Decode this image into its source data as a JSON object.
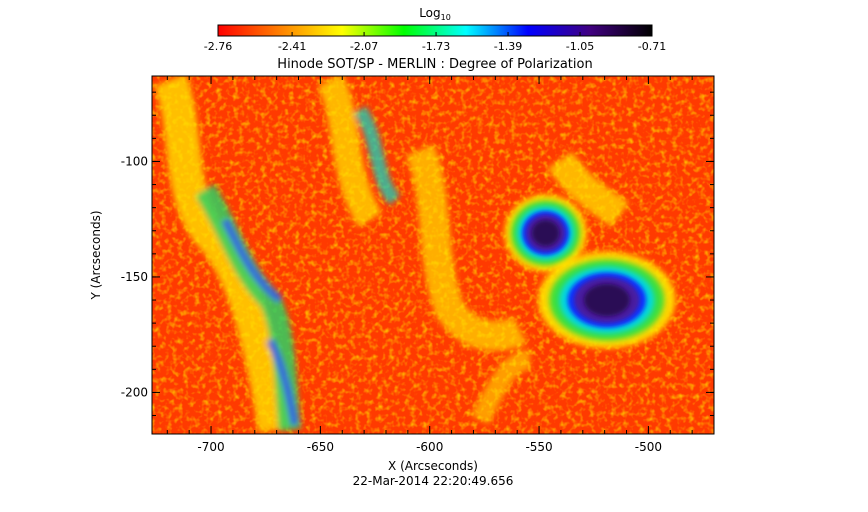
{
  "chart_data": {
    "type": "heatmap",
    "title": "Hinode SOT/SP - MERLIN : Degree of Polarization",
    "xlabel": "X (Arcseconds)",
    "ylabel": "Y (Arcseconds)",
    "xlim": [
      -727,
      -470
    ],
    "ylim": [
      -218,
      -63
    ],
    "x_ticks": [
      -700,
      -650,
      -600,
      -550,
      -500
    ],
    "x_tick_labels": [
      "-700",
      "-650",
      "-600",
      "-550",
      "-500"
    ],
    "y_ticks": [
      -100,
      -150,
      -200
    ],
    "y_tick_labels": [
      "-100",
      "-150",
      "-200"
    ],
    "colorbar": {
      "title_main": "Log",
      "title_sub": "10",
      "range": [
        -2.76,
        -0.71
      ],
      "tick_values": [
        -2.76,
        -2.41,
        -2.07,
        -1.73,
        -1.39,
        -1.05,
        -0.71
      ],
      "tick_labels": [
        "-2.76",
        "-2.41",
        "-2.07",
        "-1.73",
        "-1.39",
        "-1.05",
        "-0.71"
      ],
      "colormap": [
        "#ff0000",
        "#ff8000",
        "#ffff00",
        "#00ff00",
        "#00ffff",
        "#0000ff",
        "#400080",
        "#000000"
      ]
    },
    "features": [
      {
        "x": -547,
        "y": -131,
        "rx": 9,
        "ry": 8,
        "value": -0.85
      },
      {
        "x": -519,
        "y": -160,
        "rx": 15,
        "ry": 10,
        "value": -0.78
      }
    ],
    "grid": false,
    "footer": "22-Mar-2014 22:20:49.656"
  }
}
